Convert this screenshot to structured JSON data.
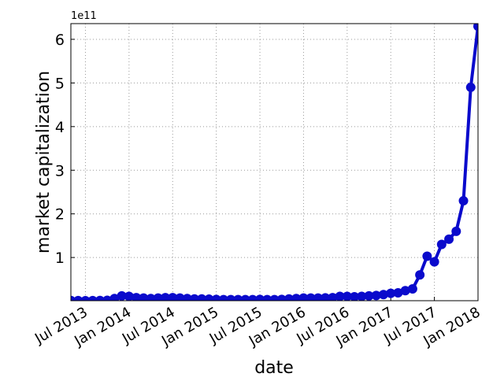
{
  "chart_data": {
    "type": "line",
    "x_label": "date",
    "y_label": "market capitalization",
    "y_offset_label": "1e11",
    "x": [
      "2013-05",
      "2013-06",
      "2013-07",
      "2013-08",
      "2013-09",
      "2013-10",
      "2013-11",
      "2013-12",
      "2014-01",
      "2014-02",
      "2014-03",
      "2014-04",
      "2014-05",
      "2014-06",
      "2014-07",
      "2014-08",
      "2014-09",
      "2014-10",
      "2014-11",
      "2014-12",
      "2015-01",
      "2015-02",
      "2015-03",
      "2015-04",
      "2015-05",
      "2015-06",
      "2015-07",
      "2015-08",
      "2015-09",
      "2015-10",
      "2015-11",
      "2015-12",
      "2016-01",
      "2016-02",
      "2016-03",
      "2016-04",
      "2016-05",
      "2016-06",
      "2016-07",
      "2016-08",
      "2016-09",
      "2016-10",
      "2016-11",
      "2016-12",
      "2017-01",
      "2017-02",
      "2017-03",
      "2017-04",
      "2017-05",
      "2017-06",
      "2017-07",
      "2017-08",
      "2017-09",
      "2017-10",
      "2017-11",
      "2017-12",
      "2018-01"
    ],
    "series": [
      {
        "color": "#0a0acc",
        "values": [
          0.015,
          0.012,
          0.01,
          0.012,
          0.015,
          0.02,
          0.06,
          0.12,
          0.11,
          0.08,
          0.07,
          0.06,
          0.07,
          0.08,
          0.08,
          0.07,
          0.06,
          0.05,
          0.05,
          0.045,
          0.04,
          0.035,
          0.035,
          0.035,
          0.035,
          0.035,
          0.04,
          0.035,
          0.035,
          0.04,
          0.05,
          0.06,
          0.07,
          0.07,
          0.07,
          0.075,
          0.08,
          0.11,
          0.11,
          0.1,
          0.11,
          0.12,
          0.13,
          0.15,
          0.18,
          0.19,
          0.24,
          0.28,
          0.6,
          1.03,
          0.9,
          1.3,
          1.42,
          1.6,
          2.3,
          4.9,
          6.3
        ]
      }
    ],
    "xlim": [
      "2013-05",
      "2018-01"
    ],
    "xticks": [
      {
        "value": "2013-07",
        "label": "Jul 2013"
      },
      {
        "value": "2014-01",
        "label": "Jan 2014"
      },
      {
        "value": "2014-07",
        "label": "Jul 2014"
      },
      {
        "value": "2015-01",
        "label": "Jan 2015"
      },
      {
        "value": "2015-07",
        "label": "Jul 2015"
      },
      {
        "value": "2016-01",
        "label": "Jan 2016"
      },
      {
        "value": "2016-07",
        "label": "Jul 2016"
      },
      {
        "value": "2017-01",
        "label": "Jan 2017"
      },
      {
        "value": "2017-07",
        "label": "Jul 2017"
      },
      {
        "value": "2018-01",
        "label": "Jan 2018"
      }
    ],
    "ylim": [
      0.01,
      6.36
    ],
    "yticks": [
      1,
      2,
      3,
      4,
      5,
      6
    ],
    "grid": true
  }
}
